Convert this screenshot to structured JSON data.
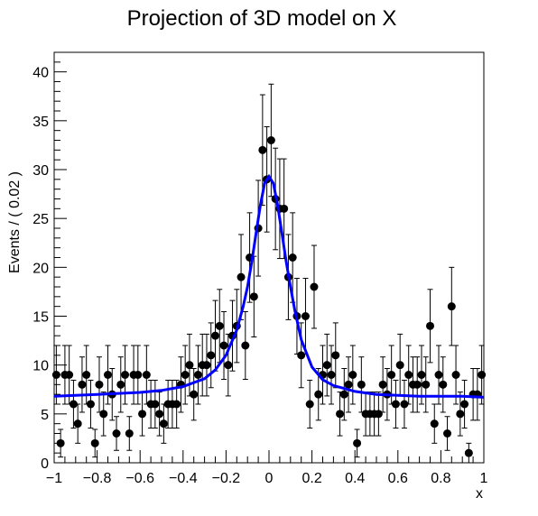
{
  "chart_data": {
    "type": "scatter",
    "title": "Projection of 3D model on X",
    "xlabel": "x",
    "ylabel": "Events / ( 0.02 )",
    "xlim": [
      -1,
      1
    ],
    "ylim": [
      0,
      42
    ],
    "xticks": [
      -1,
      -0.8,
      -0.6,
      -0.4,
      -0.2,
      0,
      0.2,
      0.4,
      0.6,
      0.8,
      1
    ],
    "xtick_labels": [
      "−1",
      "−0.8",
      "−0.6",
      "−0.4",
      "−0.2",
      "0",
      "0.2",
      "0.4",
      "0.6",
      "0.8",
      "1"
    ],
    "yticks": [
      0,
      5,
      10,
      15,
      20,
      25,
      30,
      35,
      40
    ],
    "ytick_labels": [
      "0",
      "5",
      "10",
      "15",
      "20",
      "25",
      "30",
      "35",
      "40"
    ],
    "grid": false,
    "series": [
      {
        "kind": "points-with-errors",
        "color": "#000000",
        "x": [
          -0.99,
          -0.97,
          -0.95,
          -0.93,
          -0.91,
          -0.89,
          -0.87,
          -0.85,
          -0.83,
          -0.81,
          -0.79,
          -0.77,
          -0.75,
          -0.73,
          -0.71,
          -0.69,
          -0.67,
          -0.65,
          -0.63,
          -0.61,
          -0.59,
          -0.57,
          -0.55,
          -0.53,
          -0.51,
          -0.49,
          -0.47,
          -0.45,
          -0.43,
          -0.41,
          -0.39,
          -0.37,
          -0.35,
          -0.33,
          -0.31,
          -0.29,
          -0.27,
          -0.25,
          -0.23,
          -0.21,
          -0.19,
          -0.17,
          -0.15,
          -0.13,
          -0.11,
          -0.09,
          -0.07,
          -0.05,
          -0.03,
          -0.01,
          0.01,
          0.03,
          0.05,
          0.07,
          0.09,
          0.11,
          0.13,
          0.15,
          0.17,
          0.19,
          0.21,
          0.23,
          0.25,
          0.27,
          0.29,
          0.31,
          0.33,
          0.35,
          0.37,
          0.39,
          0.41,
          0.43,
          0.45,
          0.47,
          0.49,
          0.51,
          0.53,
          0.55,
          0.57,
          0.59,
          0.61,
          0.63,
          0.65,
          0.67,
          0.69,
          0.71,
          0.73,
          0.75,
          0.77,
          0.79,
          0.81,
          0.83,
          0.85,
          0.87,
          0.89,
          0.91,
          0.93,
          0.95,
          0.97,
          0.99
        ],
        "y": [
          9,
          2,
          9,
          9,
          6,
          4,
          8,
          9,
          6,
          2,
          8,
          5,
          9,
          7,
          3,
          8,
          9,
          3,
          9,
          9,
          5,
          9,
          6,
          6,
          5,
          4,
          6,
          6,
          6,
          8,
          9,
          10,
          7,
          9,
          10,
          10,
          11,
          13,
          14,
          12,
          10,
          13,
          14,
          19,
          12,
          21,
          17,
          24,
          32,
          29,
          33,
          27,
          26,
          26,
          19,
          21,
          15,
          11,
          15,
          6,
          18,
          7,
          9,
          10,
          9,
          11,
          5,
          7,
          8,
          9,
          2,
          8,
          5,
          5,
          5,
          5,
          8,
          7,
          9,
          6,
          10,
          6,
          9,
          8,
          8,
          9,
          8,
          14,
          4,
          9,
          8,
          3,
          16,
          9,
          5,
          6,
          1,
          7,
          7,
          9
        ]
      },
      {
        "kind": "fit-curve",
        "color": "#0000ff",
        "x": [
          -1,
          -0.9,
          -0.8,
          -0.7,
          -0.6,
          -0.5,
          -0.4,
          -0.3,
          -0.25,
          -0.2,
          -0.15,
          -0.12,
          -0.1,
          -0.08,
          -0.06,
          -0.04,
          -0.02,
          0,
          0.02,
          0.04,
          0.06,
          0.08,
          0.1,
          0.12,
          0.15,
          0.2,
          0.25,
          0.3,
          0.4,
          0.5,
          0.6,
          0.7,
          0.8,
          0.9,
          1
        ],
        "y": [
          6.8,
          6.9,
          7.0,
          7.1,
          7.2,
          7.4,
          7.8,
          8.6,
          9.5,
          11.0,
          13.6,
          16.0,
          18.0,
          20.6,
          23.5,
          26.4,
          28.6,
          29.3,
          28.6,
          26.4,
          23.5,
          20.6,
          18.0,
          15.6,
          12.6,
          9.8,
          8.5,
          7.9,
          7.3,
          7.0,
          6.9,
          6.8,
          6.8,
          6.8,
          6.7
        ]
      }
    ]
  }
}
